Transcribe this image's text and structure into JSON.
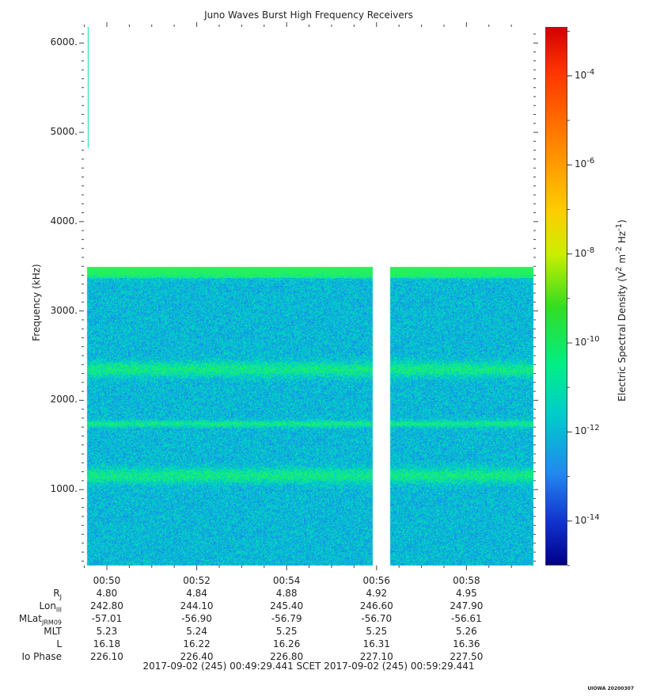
{
  "chart_data": {
    "type": "heatmap",
    "title": "Juno Waves Burst High Frequency Receivers",
    "ylabel": "Frequency (kHz)",
    "y_ticks": [
      "1000.",
      "2000.",
      "3000.",
      "4000.",
      "5000.",
      "6000."
    ],
    "y_tick_values": [
      1000,
      2000,
      3000,
      4000,
      5000,
      6000
    ],
    "ylim": [
      150,
      6180
    ],
    "x_ticks": [
      "00:50",
      "00:52",
      "00:54",
      "00:56",
      "00:58"
    ],
    "x_tick_minutes": [
      50,
      52,
      54,
      56,
      58
    ],
    "xlim_minutes": [
      49.49,
      59.49
    ],
    "data_extent": {
      "time_start_min": 49.55,
      "time_end_min": 59.49,
      "freq_top_khz": 3500,
      "freq_bottom_khz": 150
    },
    "data_gap": {
      "start_min": 55.9,
      "end_min": 56.3
    },
    "spike": {
      "time_min": 49.58,
      "freq_start_khz": 4830,
      "freq_end_khz": 6180
    },
    "bright_bands_khz": [
      1160,
      1740,
      2350,
      3470
    ],
    "colorbar": {
      "label": "Electric Spectral Density (V² m⁻² Hz⁻¹)",
      "label_parts": {
        "base": "Electric Spectral Density (V",
        "exp1": "2",
        "mid1": " m",
        "exp2": "-2",
        "mid2": " Hz",
        "exp3": "-1",
        "end": ")"
      },
      "ticks": [
        {
          "base": "10",
          "exp": "-4",
          "log": -4
        },
        {
          "base": "10",
          "exp": "-6",
          "log": -6
        },
        {
          "base": "10",
          "exp": "-8",
          "log": -8
        },
        {
          "base": "10",
          "exp": "-10",
          "log": -10
        },
        {
          "base": "10",
          "exp": "-12",
          "log": -12
        },
        {
          "base": "10",
          "exp": "-14",
          "log": -14
        }
      ],
      "range_log": [
        -15.0,
        -2.9
      ]
    }
  },
  "ephemeris": {
    "rows": [
      {
        "name": "R",
        "sub": "J",
        "values": [
          "4.80",
          "4.84",
          "4.88",
          "4.92",
          "4.95"
        ]
      },
      {
        "name": "Lon",
        "sub": "III",
        "values": [
          "242.80",
          "244.10",
          "245.40",
          "246.60",
          "247.90"
        ]
      },
      {
        "name": "MLat",
        "sub": "JRM09",
        "values": [
          "-57.01",
          "-56.90",
          "-56.79",
          "-56.70",
          "-56.61"
        ]
      },
      {
        "name": "MLT",
        "sub": "",
        "values": [
          "5.23",
          "5.24",
          "5.25",
          "5.25",
          "5.26"
        ]
      },
      {
        "name": "L",
        "sub": "",
        "values": [
          "16.18",
          "16.22",
          "16.26",
          "16.31",
          "16.36"
        ]
      },
      {
        "name": "Io Phase",
        "sub": "",
        "values": [
          "226.10",
          "226.40",
          "226.80",
          "227.10",
          "227.50"
        ]
      }
    ]
  },
  "time_range": "2017-09-02 (245) 00:49:29.441     SCET     2017-09-02 (245) 00:59:29.441",
  "credit": "UIOWA 20200307"
}
